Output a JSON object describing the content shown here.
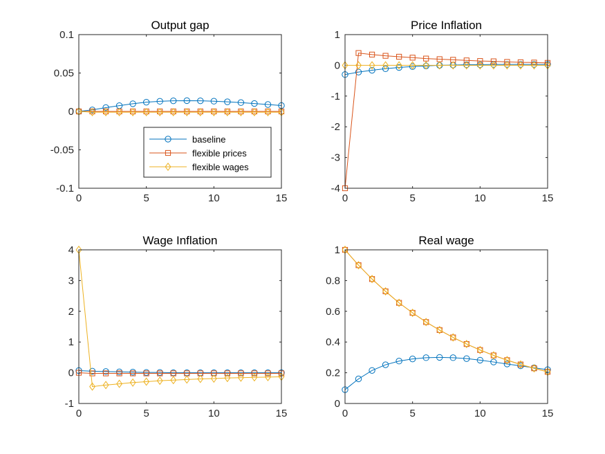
{
  "colors": {
    "baseline": "#0072BD",
    "flexible_prices": "#D95319",
    "flexible_wages": "#EDB120"
  },
  "legend": {
    "panel": 0,
    "position": "lower-right",
    "entries": [
      {
        "label": "baseline",
        "marker": "circle",
        "color": "#0072BD"
      },
      {
        "label": "flexible prices",
        "marker": "square",
        "color": "#D95319"
      },
      {
        "label": "flexible wages",
        "marker": "diamond",
        "color": "#EDB120"
      }
    ]
  },
  "chart_data": [
    {
      "type": "line",
      "title": "Output gap",
      "x": [
        0,
        1,
        2,
        3,
        4,
        5,
        6,
        7,
        8,
        9,
        10,
        11,
        12,
        13,
        14,
        15
      ],
      "xlim": [
        0,
        15
      ],
      "ylim": [
        -0.1,
        0.1
      ],
      "xticks": [
        0,
        5,
        10,
        15
      ],
      "yticks": [
        -0.1,
        -0.05,
        0,
        0.05,
        0.1
      ],
      "xtick_labels": [
        "0",
        "5",
        "10",
        "15"
      ],
      "ytick_labels": [
        "-0.1",
        "-0.05",
        "0",
        "0.05",
        "0.1"
      ],
      "series": [
        {
          "name": "baseline",
          "marker": "circle",
          "color": "#0072BD",
          "values": [
            0,
            0.002,
            0.005,
            0.0075,
            0.01,
            0.012,
            0.0132,
            0.0138,
            0.014,
            0.0138,
            0.0133,
            0.0125,
            0.0115,
            0.0103,
            0.009,
            0.0077
          ]
        },
        {
          "name": "flexible prices",
          "marker": "square",
          "color": "#D95319",
          "values": [
            0,
            0,
            0,
            0,
            0,
            0,
            0,
            0,
            0,
            0,
            0,
            0,
            0,
            0,
            0,
            0
          ]
        },
        {
          "name": "flexible wages",
          "marker": "diamond",
          "color": "#EDB120",
          "values": [
            0,
            -0.001,
            -0.001,
            -0.001,
            -0.001,
            -0.001,
            -0.001,
            -0.001,
            -0.001,
            -0.001,
            -0.001,
            -0.001,
            -0.001,
            -0.001,
            -0.001,
            -0.001
          ]
        }
      ]
    },
    {
      "type": "line",
      "title": "Price Inflation",
      "x": [
        0,
        1,
        2,
        3,
        4,
        5,
        6,
        7,
        8,
        9,
        10,
        11,
        12,
        13,
        14,
        15
      ],
      "xlim": [
        0,
        15
      ],
      "ylim": [
        -4,
        1
      ],
      "xticks": [
        0,
        5,
        10,
        15
      ],
      "yticks": [
        -4,
        -3,
        -2,
        -1,
        0,
        1
      ],
      "xtick_labels": [
        "0",
        "5",
        "10",
        "15"
      ],
      "ytick_labels": [
        "-4",
        "-3",
        "-2",
        "-1",
        "0",
        "1"
      ],
      "series": [
        {
          "name": "baseline",
          "marker": "circle",
          "color": "#0072BD",
          "values": [
            -0.3,
            -0.22,
            -0.16,
            -0.11,
            -0.07,
            -0.04,
            -0.02,
            0,
            0.01,
            0.02,
            0.02,
            0.03,
            0.03,
            0.03,
            0.03,
            0.03
          ]
        },
        {
          "name": "flexible prices",
          "marker": "square",
          "color": "#D95319",
          "values": [
            -4.0,
            0.4,
            0.35,
            0.31,
            0.28,
            0.25,
            0.22,
            0.2,
            0.18,
            0.16,
            0.14,
            0.13,
            0.11,
            0.1,
            0.09,
            0.08
          ]
        },
        {
          "name": "flexible wages",
          "marker": "diamond",
          "color": "#EDB120",
          "values": [
            0,
            0,
            0,
            0,
            0,
            0,
            0,
            0,
            0,
            0,
            0,
            0,
            0,
            0,
            0,
            0
          ]
        }
      ]
    },
    {
      "type": "line",
      "title": "Wage Inflation",
      "x": [
        0,
        1,
        2,
        3,
        4,
        5,
        6,
        7,
        8,
        9,
        10,
        11,
        12,
        13,
        14,
        15
      ],
      "xlim": [
        0,
        15
      ],
      "ylim": [
        -1,
        4
      ],
      "xticks": [
        0,
        5,
        10,
        15
      ],
      "yticks": [
        -1,
        0,
        1,
        2,
        3,
        4
      ],
      "xtick_labels": [
        "0",
        "5",
        "10",
        "15"
      ],
      "ytick_labels": [
        "-1",
        "0",
        "1",
        "2",
        "3",
        "4"
      ],
      "series": [
        {
          "name": "baseline",
          "marker": "circle",
          "color": "#0072BD",
          "values": [
            0.07,
            0.05,
            0.04,
            0.03,
            0.02,
            0.01,
            0.01,
            0,
            0,
            0,
            0,
            0,
            0,
            0,
            0,
            0
          ]
        },
        {
          "name": "flexible prices",
          "marker": "square",
          "color": "#D95319",
          "values": [
            0,
            -0.02,
            -0.02,
            -0.02,
            -0.02,
            -0.02,
            -0.02,
            -0.02,
            -0.02,
            -0.02,
            -0.02,
            -0.02,
            -0.02,
            -0.02,
            -0.02,
            -0.02
          ]
        },
        {
          "name": "flexible wages",
          "marker": "diamond",
          "color": "#EDB120",
          "values": [
            4.0,
            -0.45,
            -0.4,
            -0.36,
            -0.32,
            -0.29,
            -0.26,
            -0.24,
            -0.22,
            -0.2,
            -0.19,
            -0.17,
            -0.16,
            -0.15,
            -0.14,
            -0.13
          ]
        }
      ]
    },
    {
      "type": "line",
      "title": "Real wage",
      "x": [
        0,
        1,
        2,
        3,
        4,
        5,
        6,
        7,
        8,
        9,
        10,
        11,
        12,
        13,
        14,
        15
      ],
      "xlim": [
        0,
        15
      ],
      "ylim": [
        0,
        1
      ],
      "xticks": [
        0,
        5,
        10,
        15
      ],
      "yticks": [
        0,
        0.2,
        0.4,
        0.6,
        0.8,
        1
      ],
      "xtick_labels": [
        "0",
        "5",
        "10",
        "15"
      ],
      "ytick_labels": [
        "0",
        "0.2",
        "0.4",
        "0.6",
        "0.8",
        "1"
      ],
      "series": [
        {
          "name": "baseline",
          "marker": "circle",
          "color": "#0072BD",
          "values": [
            0.09,
            0.16,
            0.215,
            0.252,
            0.276,
            0.29,
            0.298,
            0.3,
            0.298,
            0.292,
            0.282,
            0.27,
            0.257,
            0.245,
            0.232,
            0.22
          ]
        },
        {
          "name": "flexible prices",
          "marker": "square",
          "color": "#D95319",
          "values": [
            1.0,
            0.9,
            0.81,
            0.73,
            0.655,
            0.59,
            0.53,
            0.478,
            0.43,
            0.387,
            0.348,
            0.313,
            0.282,
            0.254,
            0.229,
            0.206
          ]
        },
        {
          "name": "flexible wages",
          "marker": "diamond",
          "color": "#EDB120",
          "values": [
            1.0,
            0.9,
            0.81,
            0.73,
            0.655,
            0.59,
            0.53,
            0.478,
            0.43,
            0.387,
            0.348,
            0.313,
            0.282,
            0.254,
            0.229,
            0.206
          ]
        }
      ]
    }
  ]
}
